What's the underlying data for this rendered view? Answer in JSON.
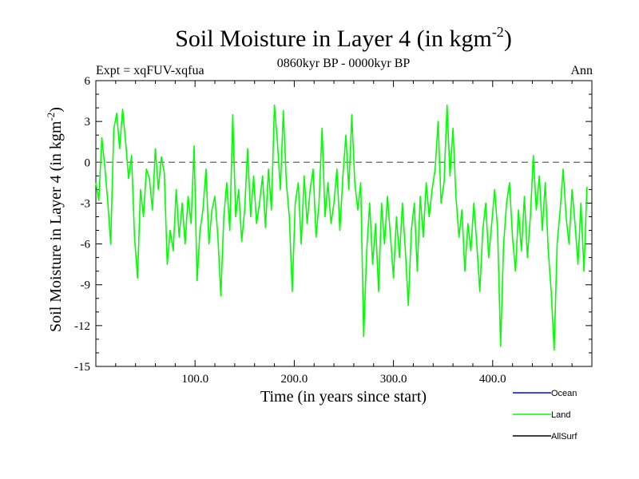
{
  "chart_data": {
    "type": "line",
    "title": "Soil Moisture in Layer 4 (in kgm",
    "title_sup": "-2",
    "title_close": ")",
    "subtitle_left": "Expt = xqFUV-xqfua",
    "subtitle_center": "0860kyr BP - 0000kyr BP",
    "subtitle_right": "Ann",
    "xlabel": "Time (in years since start)",
    "ylabel": "Soil Moisture in Layer 4 (in kgm",
    "ylabel_sup": "-2",
    "ylabel_close": ")",
    "xlim": [
      0,
      500
    ],
    "ylim": [
      -15,
      6
    ],
    "xticks": [
      100,
      200,
      300,
      400
    ],
    "xtick_labels": [
      "100.0",
      "200.0",
      "300.0",
      "400.0"
    ],
    "yticks": [
      6,
      3,
      0,
      -3,
      -6,
      -9,
      -12,
      -15
    ],
    "ytick_labels": [
      "6",
      "3",
      "0",
      "-3",
      "-6",
      "-9",
      "-12",
      "-15"
    ],
    "reference_line": 0,
    "colors": {
      "ocean": "#0000ff",
      "land": "#00ff00",
      "allsurf": "#000000",
      "reference": "#666666"
    },
    "legend_entries": [
      {
        "name": "Ocean",
        "color": "#0000ff"
      },
      {
        "name": "Land",
        "color": "#00ff00"
      },
      {
        "name": "AllSurf",
        "color": "#000000"
      }
    ],
    "series": [
      {
        "name": "Land",
        "color": "#00ff00",
        "x": [
          0,
          3,
          6,
          9,
          12,
          15,
          18,
          21,
          24,
          27,
          30,
          33,
          36,
          39,
          42,
          45,
          48,
          51,
          54,
          57,
          60,
          63,
          66,
          69,
          72,
          75,
          78,
          81,
          84,
          87,
          90,
          93,
          96,
          99,
          102,
          105,
          108,
          111,
          114,
          117,
          120,
          123,
          126,
          129,
          132,
          135,
          138,
          141,
          144,
          147,
          150,
          153,
          156,
          159,
          162,
          165,
          168,
          171,
          174,
          177,
          180,
          183,
          186,
          189,
          192,
          195,
          198,
          201,
          204,
          207,
          210,
          213,
          216,
          219,
          222,
          225,
          228,
          231,
          234,
          237,
          240,
          243,
          246,
          249,
          252,
          255,
          258,
          261,
          264,
          267,
          270,
          273,
          276,
          279,
          282,
          285,
          288,
          291,
          294,
          297,
          300,
          303,
          306,
          309,
          312,
          315,
          318,
          321,
          324,
          327,
          330,
          333,
          336,
          339,
          342,
          345,
          348,
          351,
          354,
          357,
          360,
          363,
          366,
          369,
          372,
          375,
          378,
          381,
          384,
          387,
          390,
          393,
          396,
          399,
          402,
          405,
          408,
          411,
          414,
          417,
          420,
          423,
          426,
          429,
          432,
          435,
          438,
          441,
          444,
          447,
          450,
          453,
          456,
          459,
          462,
          465,
          468,
          471,
          474,
          477,
          480,
          483,
          486,
          489,
          492,
          495
        ],
        "values": [
          -1.5,
          -2.8,
          1.8,
          -0.3,
          -2.9,
          -6.0,
          2.4,
          3.6,
          1.0,
          3.9,
          1.5,
          -1.2,
          0.5,
          -5.5,
          -8.5,
          -2.0,
          -4.0,
          -0.5,
          -1.2,
          -3.5,
          1.0,
          -2.0,
          0.4,
          -0.8,
          -7.5,
          -5.0,
          -6.5,
          -2.0,
          -5.5,
          -3.0,
          -6.0,
          -2.5,
          -4.5,
          1.2,
          -8.7,
          -5.0,
          -3.5,
          -0.5,
          -6.0,
          -3.5,
          -2.5,
          -5.5,
          -9.8,
          -4.0,
          -1.5,
          -5.0,
          3.5,
          -4.0,
          -2.0,
          -5.8,
          -3.5,
          1.0,
          -4.0,
          -1.0,
          -4.5,
          -3.0,
          -1.0,
          -4.8,
          -0.5,
          -3.5,
          4.2,
          1.5,
          -2.0,
          3.8,
          -1.5,
          -4.0,
          -9.5,
          -3.0,
          -1.5,
          -6.0,
          -1.0,
          -4.5,
          -2.0,
          -0.5,
          -5.5,
          -3.0,
          2.5,
          -4.0,
          -1.5,
          -4.5,
          -3.0,
          -0.5,
          -5.0,
          -1.0,
          2.0,
          -2.0,
          3.5,
          -1.5,
          -3.5,
          -1.5,
          -12.8,
          -6.5,
          -3.0,
          -7.5,
          -4.5,
          -9.5,
          -3.0,
          -6.0,
          -2.5,
          -5.5,
          -8.5,
          -4.0,
          -7.0,
          -3.0,
          -6.5,
          -10.5,
          -5.0,
          -3.0,
          -8.0,
          -2.5,
          -5.5,
          -1.5,
          -4.0,
          -2.0,
          -0.5,
          3.0,
          -3.0,
          -1.5,
          4.2,
          -1.0,
          2.5,
          -2.5,
          -5.5,
          -3.5,
          -8.0,
          -4.5,
          -6.5,
          -3.0,
          -6.0,
          -9.5,
          -5.0,
          -3.0,
          -7.0,
          -4.5,
          -2.0,
          -5.0,
          -13.5,
          -6.0,
          -3.0,
          -1.5,
          -5.5,
          -8.0,
          -3.5,
          -6.5,
          -2.5,
          -7.0,
          -4.0,
          0.5,
          -3.5,
          -1.0,
          -5.0,
          -1.5,
          -6.5,
          -9.5,
          -13.8,
          -6.0,
          -3.5,
          -0.5,
          -4.0,
          -6.0,
          -2.0,
          -4.5,
          -7.5,
          -3.0,
          -8.0,
          -1.8
        ]
      }
    ]
  }
}
